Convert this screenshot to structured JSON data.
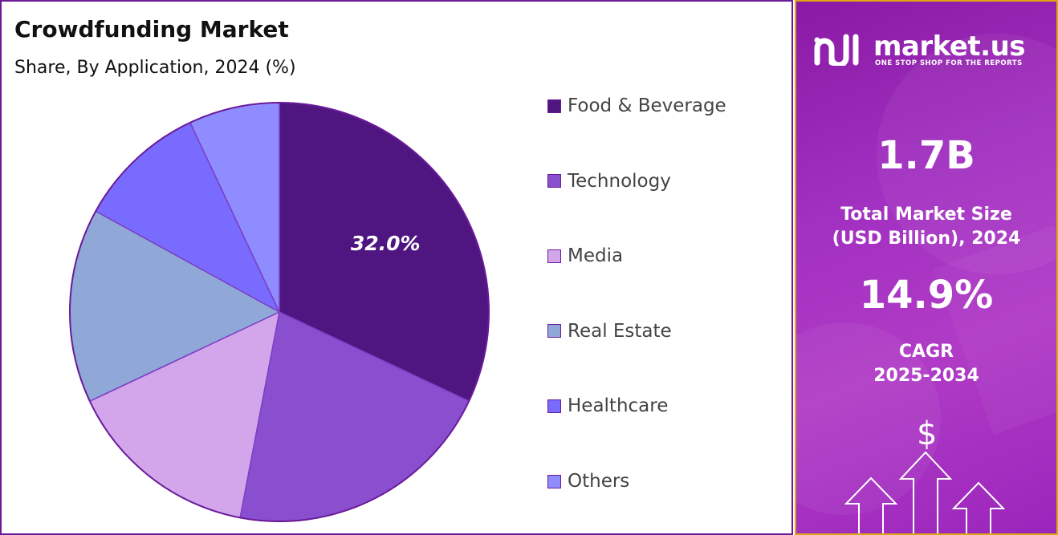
{
  "chart_data": {
    "type": "pie",
    "title": "Crowdfunding Market",
    "subtitle": "Share, By Application, 2024 (%)",
    "categories": [
      "Food & Beverage",
      "Technology",
      "Media",
      "Real Estate",
      "Healthcare",
      "Others"
    ],
    "values": [
      32.0,
      21.0,
      15.0,
      15.0,
      10.0,
      7.0
    ],
    "colors": [
      "#4f1681",
      "#8a4fce",
      "#d3a6ec",
      "#8fa8d8",
      "#7a6bff",
      "#8e8cff"
    ],
    "data_labels": [
      {
        "category": "Food & Beverage",
        "text": "32.0%"
      }
    ],
    "legend_position": "right",
    "start_angle_deg": 0,
    "direction": "clockwise"
  },
  "info": {
    "brand": "market.us",
    "tagline": "ONE STOP SHOP FOR THE REPORTS",
    "market_size_value": "1.7B",
    "market_size_label_line1": "Total Market Size",
    "market_size_label_line2": "(USD Billion), 2024",
    "cagr_value": "14.9%",
    "cagr_label_line1": "CAGR",
    "cagr_label_line2": "2025-2034",
    "currency_symbol": "$",
    "accent_color": "#a12fc0",
    "border_color": "#e0a416",
    "icons": [
      "market-us-logo-icon",
      "dollar-icon",
      "up-arrow-icon"
    ]
  }
}
